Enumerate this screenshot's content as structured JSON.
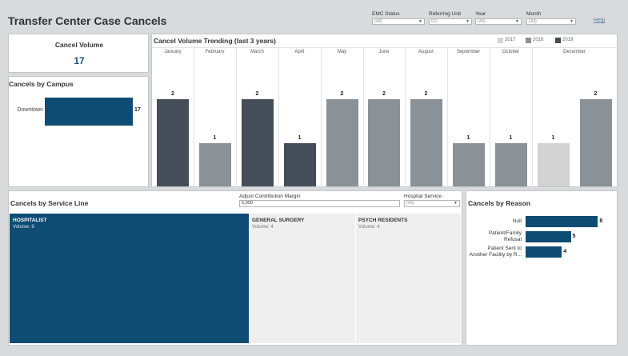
{
  "dashboard": {
    "title": "Transfer Center Case Cancels",
    "help_label": "Help"
  },
  "filters": {
    "emc_status": {
      "label": "EMC Status",
      "value": "(All)"
    },
    "referring_unit": {
      "label": "Referring Unit",
      "value": "ED"
    },
    "year": {
      "label": "Year",
      "value": "(All)"
    },
    "month": {
      "label": "Month",
      "value": "(All)"
    }
  },
  "cancel_volume": {
    "title": "Cancel Volume",
    "value": "17"
  },
  "campus": {
    "title": "Cancels by Campus",
    "rows": [
      {
        "label": "Downtown",
        "value": 17
      }
    ]
  },
  "trending": {
    "title": "Cancel Volume Trending (last 3 years)",
    "legend": [
      {
        "label": "2017",
        "color": "#d3d3d3"
      },
      {
        "label": "2018",
        "color": "#8a9297"
      },
      {
        "label": "2019",
        "color": "#454d59"
      }
    ],
    "months": [
      "January",
      "February",
      "March",
      "April",
      "May",
      "June",
      "August",
      "September",
      "October",
      "December"
    ]
  },
  "chart_data": {
    "type": "bar",
    "title": "Cancel Volume Trending (last 3 years)",
    "bars": [
      {
        "month": "January",
        "year": "2019",
        "value": 2
      },
      {
        "month": "February",
        "year": "2018",
        "value": 1
      },
      {
        "month": "March",
        "year": "2019",
        "value": 2
      },
      {
        "month": "April",
        "year": "2019",
        "value": 1
      },
      {
        "month": "May",
        "year": "2018",
        "value": 2
      },
      {
        "month": "June",
        "year": "2018",
        "value": 2
      },
      {
        "month": "August",
        "year": "2018",
        "value": 2
      },
      {
        "month": "September",
        "year": "2018",
        "value": 1
      },
      {
        "month": "October",
        "year": "2018",
        "value": 1
      },
      {
        "month": "December",
        "year": "2017",
        "value": 1
      },
      {
        "month": "December",
        "year": "2018",
        "value": 2
      }
    ],
    "ylim": [
      0,
      2
    ]
  },
  "service_line": {
    "title": "Cancels by Service Line",
    "margin_label": "Adjust Contribution Margin",
    "margin_value": "5,000",
    "hospital_service_label": "Hospital Service",
    "hospital_service_value": "(All)",
    "items": [
      {
        "name": "HOSPITALIST",
        "volume_text": "Volume: 9",
        "volume": 9
      },
      {
        "name": "GENERAL SURGERY",
        "volume_text": "Volume: 4",
        "volume": 4
      },
      {
        "name": "PSYCH RESIDENTS",
        "volume_text": "Volume: 4",
        "volume": 4
      }
    ]
  },
  "reason": {
    "title": "Cancels by Reason",
    "rows": [
      {
        "label_lines": [
          "Null"
        ],
        "value": 8
      },
      {
        "label_lines": [
          "Patient/Family",
          "Refusal"
        ],
        "value": 5
      },
      {
        "label_lines": [
          "Patient Sent to",
          "Another Facility by R..."
        ],
        "value": 4
      }
    ]
  },
  "colors": {
    "navy": "#0e4c73",
    "kpi": "#1f4e79"
  }
}
